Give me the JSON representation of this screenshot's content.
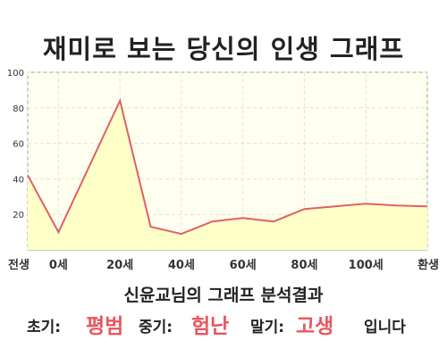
{
  "title": "재미로 보는 당신의 인생 그래프",
  "caption": "신윤교님의 그래프 분석결과",
  "summary": {
    "early_label": "초기:",
    "early_value": "평범",
    "mid_label": "중기:",
    "mid_value": "험난",
    "late_label": "말기:",
    "late_value": "고생",
    "ending": "입니다"
  },
  "colors": {
    "line": "#e05f66",
    "fill": "#ffffc8",
    "plot_bg": "#fffff0",
    "grid": "#e4e4d4",
    "accent": "#e8575f"
  },
  "chart_data": {
    "type": "area",
    "x": [
      -10,
      0,
      20,
      30,
      40,
      50,
      60,
      70,
      80,
      90,
      100,
      110,
      120
    ],
    "values": [
      42,
      10,
      84,
      13,
      9,
      16,
      18,
      16,
      23,
      24.5,
      26,
      25,
      24.5
    ],
    "xticks": [
      {
        "x": -10,
        "label": "전생"
      },
      {
        "x": 0,
        "label": "0세"
      },
      {
        "x": 20,
        "label": "20세"
      },
      {
        "x": 40,
        "label": "40세"
      },
      {
        "x": 60,
        "label": "60세"
      },
      {
        "x": 80,
        "label": "80세"
      },
      {
        "x": 100,
        "label": "100세"
      },
      {
        "x": 120,
        "label": "환생"
      }
    ],
    "yticks": [
      20,
      40,
      60,
      80,
      100
    ],
    "ylim": [
      0,
      100
    ],
    "xlim": [
      -10,
      120
    ],
    "grid": true
  }
}
